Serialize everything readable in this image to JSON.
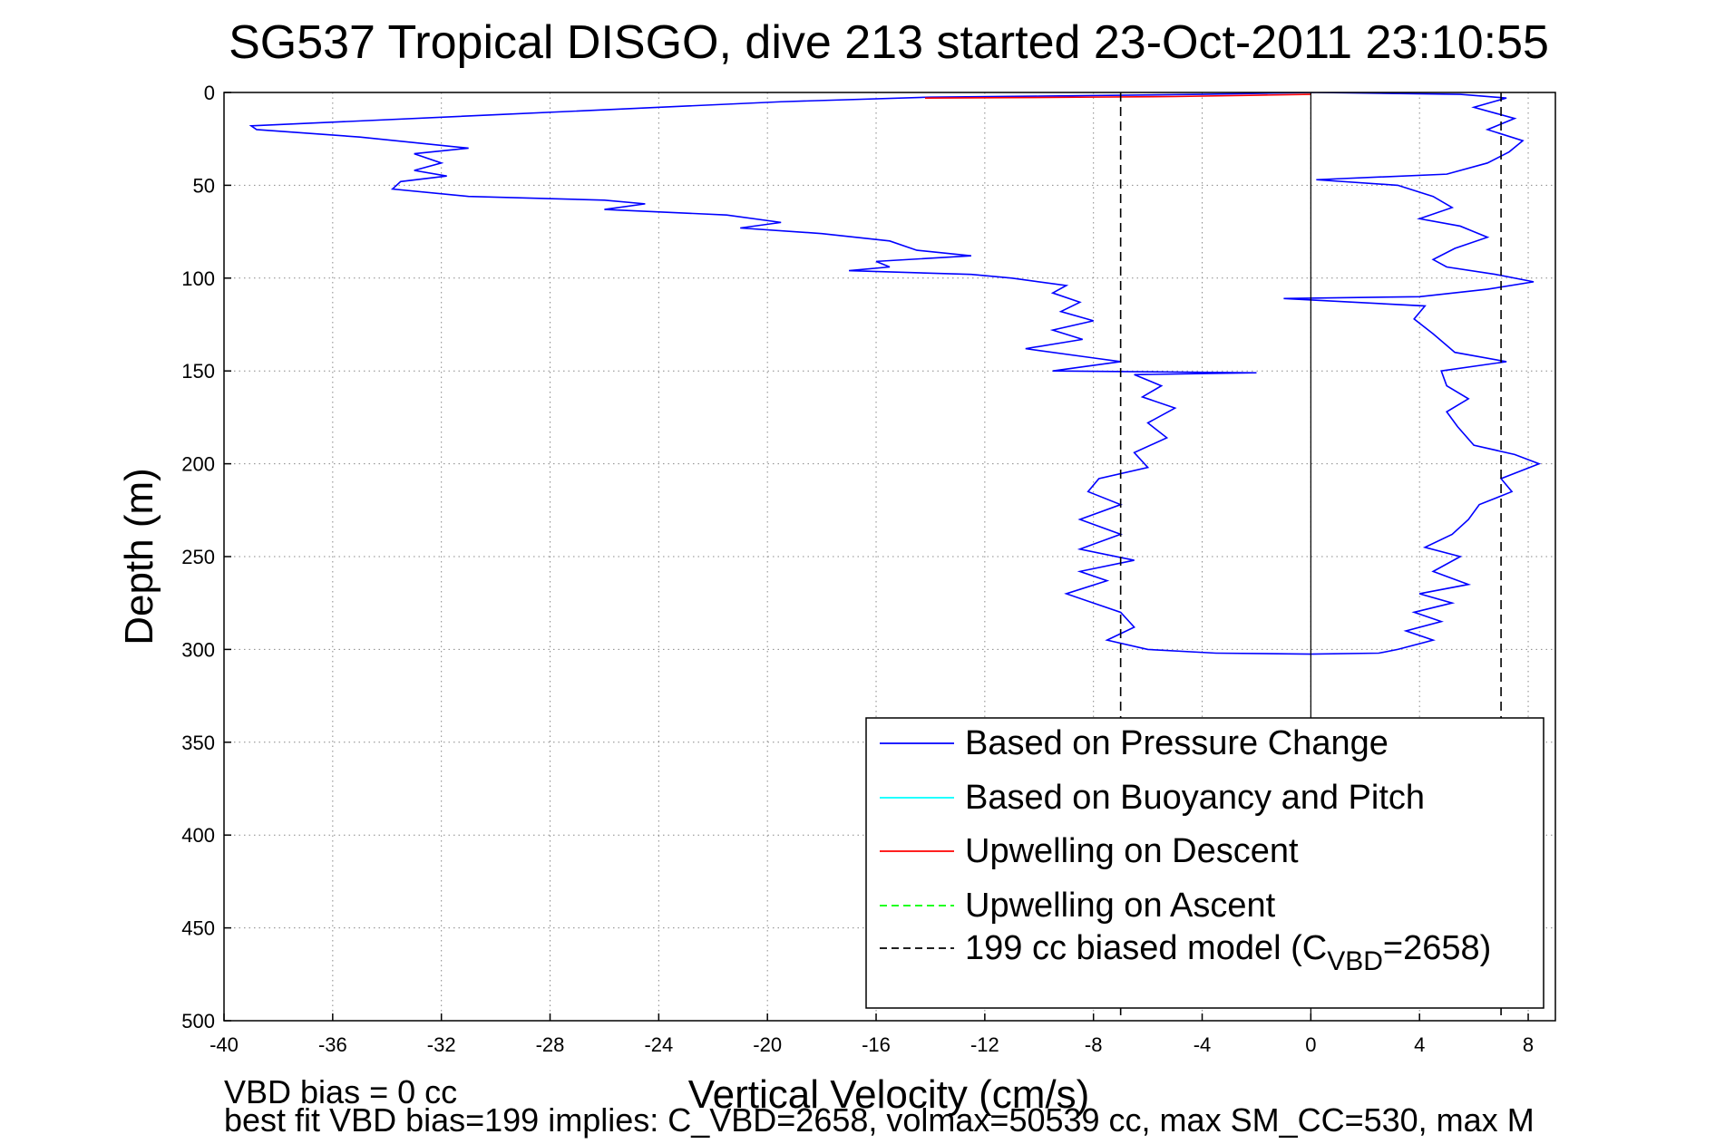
{
  "chart_data": {
    "type": "line",
    "title": "SG537 Tropical DISGO, dive 213 started 23-Oct-2011 23:10:55",
    "xlabel": "Vertical Velocity (cm/s)",
    "ylabel": "Depth (m)",
    "xlim": [
      -40,
      9
    ],
    "ylim": [
      500,
      0
    ],
    "y_axis_inverted": true,
    "grid": true,
    "xticks": [
      -40,
      -36,
      -32,
      -28,
      -24,
      -20,
      -16,
      -12,
      -8,
      -4,
      0,
      4,
      8
    ],
    "yticks": [
      0,
      50,
      100,
      150,
      200,
      250,
      300,
      350,
      400,
      450,
      500
    ],
    "legend_position": "bottom-right",
    "legend": [
      {
        "label": "Based on Pressure Change",
        "color": "#0000ff",
        "style": "solid"
      },
      {
        "label": "Based on Buoyancy and Pitch",
        "color": "#00ffff",
        "style": "solid"
      },
      {
        "label": "Upwelling on Descent",
        "color": "#ff0000",
        "style": "solid"
      },
      {
        "label": "Upwelling on Ascent",
        "color": "#00ff00",
        "style": "dashed"
      },
      {
        "label_prefix": "199 cc biased model (C",
        "label_sub": "VBD",
        "label_suffix": "=2658)",
        "color": "#000000",
        "style": "dashed"
      }
    ],
    "series": [
      {
        "name": "Based on Pressure Change",
        "segment": "descent",
        "color": "#0000ff",
        "points": [
          [
            0.2,
            0
          ],
          [
            -4,
            1
          ],
          [
            -10,
            2
          ],
          [
            -14,
            2.5
          ],
          [
            -19.5,
            5
          ],
          [
            -30,
            12
          ],
          [
            -39,
            18
          ],
          [
            -38.8,
            20
          ],
          [
            -35,
            24
          ],
          [
            -31,
            30
          ],
          [
            -33,
            33
          ],
          [
            -32,
            38
          ],
          [
            -33,
            42
          ],
          [
            -31.8,
            45
          ],
          [
            -33.5,
            48
          ],
          [
            -33.8,
            52
          ],
          [
            -31,
            56
          ],
          [
            -26,
            58
          ],
          [
            -24.5,
            60
          ],
          [
            -26,
            63
          ],
          [
            -21.5,
            66
          ],
          [
            -19.5,
            70
          ],
          [
            -21,
            73
          ],
          [
            -18,
            76
          ],
          [
            -15.5,
            80
          ],
          [
            -14.5,
            85
          ],
          [
            -12.5,
            88
          ],
          [
            -16,
            91
          ],
          [
            -15.5,
            94
          ],
          [
            -17,
            96
          ],
          [
            -12.5,
            98
          ],
          [
            -11,
            100
          ],
          [
            -9,
            104
          ],
          [
            -9.5,
            108
          ],
          [
            -8.5,
            113
          ],
          [
            -9.2,
            118
          ],
          [
            -8,
            123
          ],
          [
            -9.5,
            128
          ],
          [
            -8.4,
            133
          ],
          [
            -10.5,
            138
          ],
          [
            -8,
            143
          ],
          [
            -7,
            145
          ],
          [
            -9.5,
            150
          ],
          [
            -2,
            151
          ],
          [
            -6.5,
            152
          ],
          [
            -5.5,
            158
          ],
          [
            -6.2,
            164
          ],
          [
            -5,
            170
          ],
          [
            -6,
            178
          ],
          [
            -5.3,
            186
          ],
          [
            -6.5,
            194
          ],
          [
            -6,
            202
          ],
          [
            -7.8,
            208
          ],
          [
            -8.2,
            215
          ],
          [
            -7,
            222
          ],
          [
            -8.5,
            230
          ],
          [
            -7,
            238
          ],
          [
            -8.5,
            246
          ],
          [
            -6.5,
            252
          ],
          [
            -8.5,
            258
          ],
          [
            -7.5,
            263
          ],
          [
            -9,
            270
          ],
          [
            -8,
            275
          ],
          [
            -7,
            280
          ],
          [
            -6.5,
            288
          ],
          [
            -7.5,
            295
          ],
          [
            -6,
            300
          ],
          [
            -3.5,
            302
          ]
        ]
      },
      {
        "name": "Based on Pressure Change",
        "segment": "ascent",
        "color": "#0000ff",
        "points": [
          [
            -3.5,
            302
          ],
          [
            0,
            302.5
          ],
          [
            2.5,
            302
          ],
          [
            3.2,
            300
          ],
          [
            4.5,
            295
          ],
          [
            3.5,
            290
          ],
          [
            4.8,
            285
          ],
          [
            3.8,
            280
          ],
          [
            5.2,
            275
          ],
          [
            4,
            270
          ],
          [
            5.8,
            265
          ],
          [
            4.5,
            258
          ],
          [
            5.5,
            250
          ],
          [
            4.2,
            245
          ],
          [
            5.2,
            238
          ],
          [
            5.8,
            230
          ],
          [
            6.2,
            222
          ],
          [
            7.4,
            215
          ],
          [
            7,
            208
          ],
          [
            8.4,
            200
          ],
          [
            7.5,
            195
          ],
          [
            6,
            190
          ],
          [
            5.4,
            180
          ],
          [
            5,
            172
          ],
          [
            5.8,
            165
          ],
          [
            5,
            158
          ],
          [
            4.8,
            150
          ],
          [
            7.2,
            145
          ],
          [
            5.3,
            140
          ],
          [
            4.5,
            130
          ],
          [
            3.8,
            122
          ],
          [
            4.2,
            115
          ],
          [
            -1,
            111
          ],
          [
            4,
            110
          ],
          [
            6.5,
            106
          ],
          [
            8.2,
            102
          ],
          [
            6.8,
            98
          ],
          [
            5,
            94
          ],
          [
            4.5,
            90
          ],
          [
            5.3,
            84
          ],
          [
            6.5,
            78
          ],
          [
            5.5,
            72
          ],
          [
            4,
            68
          ],
          [
            5.2,
            62
          ],
          [
            4.5,
            56
          ],
          [
            3.2,
            50
          ],
          [
            0.2,
            47
          ],
          [
            5,
            44
          ],
          [
            6.5,
            38
          ],
          [
            7.3,
            32
          ],
          [
            7.8,
            26
          ],
          [
            6.5,
            20
          ],
          [
            7.5,
            14
          ],
          [
            6,
            8
          ],
          [
            7.2,
            3
          ],
          [
            5.5,
            1
          ],
          [
            0.2,
            0
          ]
        ]
      },
      {
        "name": "Upwelling on Descent",
        "color": "#ff0000",
        "points": [
          [
            -14.2,
            3
          ],
          [
            -11,
            2.8
          ],
          [
            -8,
            2.5
          ],
          [
            -5,
            2.2
          ],
          [
            -2,
            1.5
          ],
          [
            0,
            1
          ]
        ]
      },
      {
        "name": "199 cc biased model",
        "color": "#000000",
        "dashed": true,
        "points_left": [
          [
            -7,
            0
          ],
          [
            -7,
            500
          ]
        ],
        "points_right": [
          [
            7,
            0
          ],
          [
            7,
            500
          ]
        ]
      },
      {
        "name": "zero line",
        "color": "#000000",
        "points": [
          [
            0,
            0
          ],
          [
            0,
            500
          ]
        ]
      }
    ]
  },
  "footnote_line1": "VBD bias = 0 cc",
  "footnote_line2": "best fit VBD bias=199 implies: C_VBD=2658, volmax=50539 cc, max SM_CC=530, max M"
}
